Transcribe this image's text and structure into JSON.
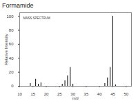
{
  "chart_data": {
    "type": "bar",
    "title": "Formamide",
    "annotation": "MASS SPECTRUM",
    "x_label": "m/z",
    "y_label": "Relative Intensity",
    "x": [
      14,
      16,
      17,
      18,
      26,
      27,
      28,
      29,
      30,
      42,
      43,
      44,
      45,
      46
    ],
    "values": [
      4,
      10,
      3,
      5,
      3,
      8,
      15,
      27,
      3,
      4,
      12,
      27,
      100,
      2
    ],
    "color": "#000000",
    "xlim": [
      10,
      52
    ],
    "xticks": [
      10,
      15,
      20,
      25,
      30,
      35,
      40,
      45,
      50
    ],
    "ylim": [
      0,
      105
    ],
    "yticks": [
      0,
      20,
      40,
      60,
      80,
      100
    ],
    "grid": false
  }
}
